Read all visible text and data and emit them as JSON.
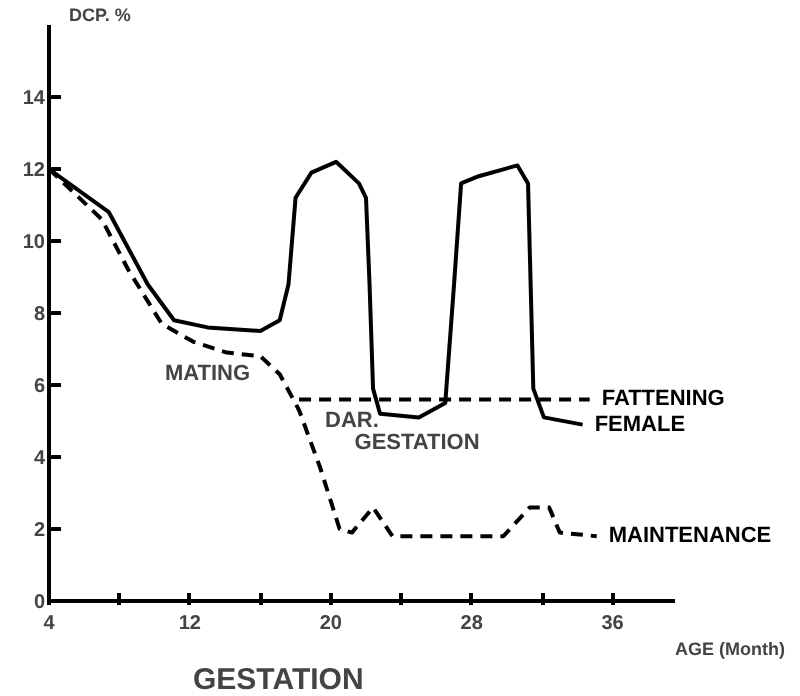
{
  "chart_data": {
    "type": "line",
    "xlabel": "AGE (Month)",
    "ylabel": "DCP. %",
    "xlim": [
      4,
      39.5
    ],
    "ylim": [
      0,
      16
    ],
    "xticks": [
      4,
      {
        "value": 8,
        "label": null
      },
      12,
      {
        "value": 16,
        "label": null
      },
      20,
      {
        "value": 24,
        "label": null
      },
      28,
      {
        "value": 32,
        "label": null
      },
      36
    ],
    "yticks": [
      0,
      2,
      4,
      6,
      8,
      10,
      12,
      14
    ],
    "grid": false,
    "legend": false,
    "marker": "none",
    "series": [
      {
        "name": "FEMALE",
        "color": "#000000",
        "line_style": "solid",
        "x": [
          4,
          7.4,
          9.6,
          11.1,
          13,
          16,
          17.1,
          17.6,
          18,
          18.9,
          20.3,
          21.6,
          22,
          22.2,
          22.4,
          22.8,
          25,
          26.5,
          27,
          27.4,
          28.4,
          30.6,
          31.2,
          31.5,
          32.1,
          34.3
        ],
        "values": [
          12,
          10.8,
          8.8,
          7.8,
          7.6,
          7.5,
          7.8,
          8.8,
          11.2,
          11.9,
          12.2,
          11.6,
          11.2,
          8.8,
          5.9,
          5.2,
          5.1,
          5.5,
          8.8,
          11.6,
          11.8,
          12.1,
          11.6,
          5.9,
          5.1,
          4.9
        ]
      },
      {
        "name": "FATTENING",
        "color": "#000000",
        "line_style": "dashed",
        "x": [
          18.2,
          34.7
        ],
        "values": [
          5.6,
          5.6
        ]
      },
      {
        "name": "MAINTENANCE",
        "color": "#000000",
        "line_style": "dashed",
        "x": [
          4,
          7,
          8.5,
          10.4,
          12.2,
          14.1,
          16,
          17.1,
          18.2,
          19.4,
          20.5,
          21.2,
          22.4,
          23.5,
          29.8,
          31.3,
          32.4,
          33,
          35.1
        ],
        "values": [
          12,
          10.6,
          9.2,
          7.7,
          7.2,
          6.9,
          6.8,
          6.3,
          5.3,
          3.7,
          2.0,
          1.9,
          2.6,
          1.8,
          1.8,
          2.6,
          2.6,
          1.9,
          1.8
        ]
      }
    ],
    "annotations": [
      "MATING",
      "DAR.",
      "GESTATION",
      "GESTATION"
    ]
  }
}
